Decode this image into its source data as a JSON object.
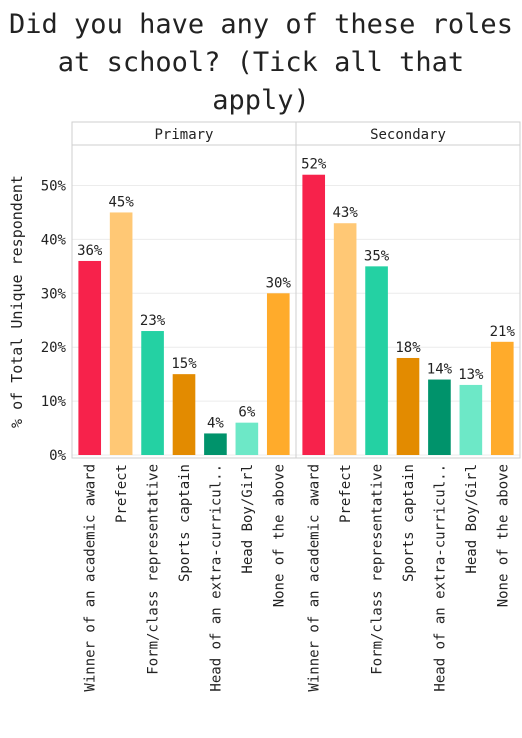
{
  "chart_data": {
    "type": "bar",
    "title": "Did you have any of these roles\nat school? (Tick all that\napply)",
    "ylabel": "% of Total Unique respondent",
    "xlabel": "",
    "ylim": [
      0,
      0.58
    ],
    "yticks": [
      0,
      0.1,
      0.2,
      0.3,
      0.4,
      0.5
    ],
    "ytick_labels": [
      "0%",
      "10%",
      "20%",
      "30%",
      "40%",
      "50%"
    ],
    "grid": true,
    "categories": [
      "Winner of an academic award",
      "Prefect",
      "Form/class representative",
      "Sports captain",
      "Head of an extra-curricul..",
      "Head Boy/Girl",
      "None of the above"
    ],
    "colors": [
      "#f7224b",
      "#ffc875",
      "#24d1a3",
      "#e38b00",
      "#00936b",
      "#6de8c7",
      "#ffab2b"
    ],
    "facets": [
      {
        "name": "Primary",
        "values": [
          0.36,
          0.45,
          0.23,
          0.15,
          0.04,
          0.06,
          0.3
        ],
        "labels": [
          "36%",
          "45%",
          "23%",
          "15%",
          "4%",
          "6%",
          "30%"
        ]
      },
      {
        "name": "Secondary",
        "values": [
          0.52,
          0.43,
          0.35,
          0.18,
          0.14,
          0.13,
          0.21
        ],
        "labels": [
          "52%",
          "43%",
          "35%",
          "18%",
          "14%",
          "13%",
          "21%"
        ]
      }
    ]
  }
}
